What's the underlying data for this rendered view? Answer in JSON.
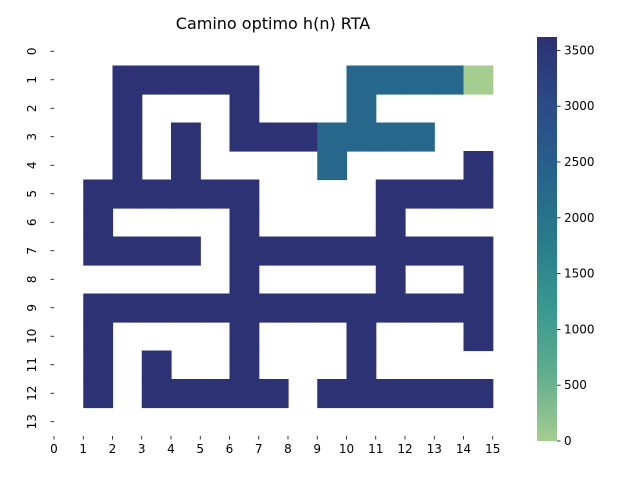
{
  "chart_data": {
    "type": "heatmap",
    "title": "Camino optimo h(n) RTA",
    "xlabel": "",
    "ylabel": "",
    "x_ticks": [
      "0",
      "1",
      "2",
      "3",
      "4",
      "5",
      "6",
      "7",
      "8",
      "9",
      "10",
      "11",
      "12",
      "13",
      "14",
      "15"
    ],
    "y_ticks": [
      "0",
      "1",
      "2",
      "3",
      "4",
      "5",
      "6",
      "7",
      "8",
      "9",
      "10",
      "11",
      "12",
      "13"
    ],
    "colorbar": {
      "min": 0,
      "max": 3620,
      "ticks": [
        "0",
        "500",
        "1000",
        "1500",
        "2000",
        "2500",
        "3000",
        "3500"
      ],
      "tick_values": [
        0,
        500,
        1000,
        1500,
        2000,
        2500,
        3000,
        3500
      ],
      "colormap": "crest",
      "stops": [
        "#a5cd90",
        "#5fad8e",
        "#37988f",
        "#287b8b",
        "#26628b",
        "#2b4a89",
        "#2c3172"
      ]
    },
    "cells": [
      {
        "row": 1,
        "cols": [
          2,
          3,
          4,
          5,
          6
        ],
        "value": 3600
      },
      {
        "row": 1,
        "cols": [
          10,
          11,
          12,
          13
        ],
        "value": 2300
      },
      {
        "row": 1,
        "cols": [
          14
        ],
        "value": 0
      },
      {
        "row": 2,
        "cols": [
          2,
          6
        ],
        "value": 3600
      },
      {
        "row": 2,
        "cols": [
          10
        ],
        "value": 2300
      },
      {
        "row": 3,
        "cols": [
          2,
          4,
          6,
          7,
          8
        ],
        "value": 3600
      },
      {
        "row": 3,
        "cols": [
          9,
          10,
          11,
          12
        ],
        "value": 2300
      },
      {
        "row": 4,
        "cols": [
          2,
          4,
          14
        ],
        "value": 3600
      },
      {
        "row": 4,
        "cols": [
          9
        ],
        "value": 2300
      },
      {
        "row": 5,
        "cols": [
          1,
          2,
          3,
          4,
          5,
          6,
          11,
          12,
          13,
          14
        ],
        "value": 3600
      },
      {
        "row": 6,
        "cols": [
          1,
          6,
          11
        ],
        "value": 3600
      },
      {
        "row": 7,
        "cols": [
          1,
          2,
          3,
          4,
          6,
          7,
          8,
          9,
          10,
          11,
          12,
          13,
          14
        ],
        "value": 3600
      },
      {
        "row": 8,
        "cols": [
          6,
          11,
          14
        ],
        "value": 3600
      },
      {
        "row": 9,
        "cols": [
          1,
          2,
          3,
          4,
          5,
          6,
          7,
          8,
          9,
          10,
          11,
          12,
          13,
          14
        ],
        "value": 3600
      },
      {
        "row": 10,
        "cols": [
          1,
          6,
          10,
          14
        ],
        "value": 3600
      },
      {
        "row": 11,
        "cols": [
          1,
          3,
          6,
          10
        ],
        "value": 3600
      },
      {
        "row": 12,
        "cols": [
          1,
          3,
          4,
          5,
          6,
          7,
          9,
          10,
          11,
          12,
          13,
          14
        ],
        "value": 3600
      }
    ]
  }
}
